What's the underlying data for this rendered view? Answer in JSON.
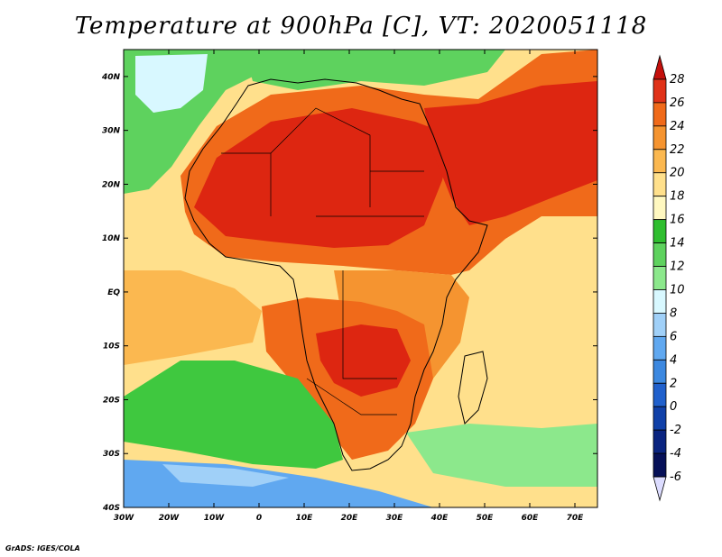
{
  "title": "Temperature at 900hPa [C], VT: 2020051118",
  "credit": "GrADS: IGES/COLA",
  "map": {
    "lon_range": [
      -30,
      75
    ],
    "lat_range": [
      -40,
      45
    ],
    "x_ticks": [
      "30W",
      "20W",
      "10W",
      "0",
      "10E",
      "20E",
      "30E",
      "40E",
      "50E",
      "60E",
      "70E"
    ],
    "y_ticks": [
      "40N",
      "30N",
      "20N",
      "10N",
      "EQ",
      "10S",
      "20S",
      "30S",
      "40S"
    ],
    "ocean_color": "#ffe08c",
    "regions": [
      {
        "name": "north-atlantic-cool",
        "color": "#5ed25e"
      },
      {
        "name": "azores-pale",
        "color": "#d8f8ff"
      },
      {
        "name": "mediterranean-cool",
        "color": "#5ed25e"
      },
      {
        "name": "sahara-heat",
        "color": "#f06a1a"
      },
      {
        "name": "sahara-core",
        "color": "#dd2611"
      },
      {
        "name": "arabia-core",
        "color": "#dd2611"
      },
      {
        "name": "east-africa-warm",
        "color": "#f59430"
      },
      {
        "name": "southern-africa-heat",
        "color": "#f06a1a"
      },
      {
        "name": "zambia-core",
        "color": "#dd2611"
      },
      {
        "name": "south-atlantic-cool",
        "color": "#3fc83f"
      },
      {
        "name": "southern-ocean-cold",
        "color": "#60a8f0"
      },
      {
        "name": "indian-ocean-cool",
        "color": "#8ce88c"
      }
    ]
  },
  "colorbar": {
    "levels": [
      "28",
      "26",
      "24",
      "22",
      "20",
      "18",
      "16",
      "14",
      "12",
      "10",
      "8",
      "6",
      "4",
      "2",
      "0",
      "-2",
      "-4",
      "-6"
    ],
    "colors": [
      "#c4100c",
      "#e03218",
      "#f06a1a",
      "#f59430",
      "#fbb850",
      "#ffe08c",
      "#fff8c0",
      "#2fbe2f",
      "#5ed25e",
      "#8ce88c",
      "#d8f8ff",
      "#a0d0f8",
      "#60a8f0",
      "#3c88e0",
      "#2060cc",
      "#1040a8",
      "#0a2480",
      "#061058",
      "#dcdcff"
    ]
  }
}
